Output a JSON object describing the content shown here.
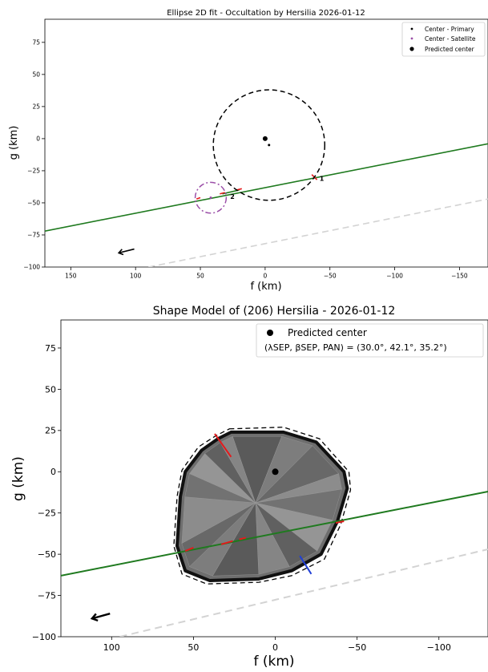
{
  "chart_data": [
    {
      "type": "scatter",
      "title": "Ellipse 2D fit - Occultation by Hersilia 2026-01-12",
      "xlabel": "f (km)",
      "ylabel": "g (km)",
      "xlim": [
        170,
        -172
      ],
      "ylim": [
        -100,
        93
      ],
      "x_ticks": [
        150,
        100,
        50,
        0,
        -50,
        -100,
        -150
      ],
      "x_tick_labels": [
        "150",
        "100",
        "50",
        "0",
        "−50",
        "−100",
        "−150"
      ],
      "y_ticks": [
        75,
        50,
        25,
        0,
        -25,
        -50,
        -75,
        -100
      ],
      "y_tick_labels": [
        "75",
        "50",
        "25",
        "0",
        "−25",
        "−50",
        "−75",
        "−100"
      ],
      "legend_position": "top-right",
      "legend": [
        {
          "label": "Center - Primary",
          "marker": "small-dot",
          "color": "#000000"
        },
        {
          "label": "Center - Satellite",
          "marker": "small-dot",
          "color": "#9b4fa8"
        },
        {
          "label": "Predicted center",
          "marker": "dot",
          "color": "#000000"
        }
      ],
      "primary_ellipse": {
        "center": [
          -3,
          -5
        ],
        "radius_x": 43,
        "radius_y": 43,
        "style": "dashed",
        "color": "#000000"
      },
      "satellite_ellipse": {
        "center": [
          42,
          -46
        ],
        "radius_x": 12,
        "radius_y": 12,
        "style": "dash-dot",
        "color": "#9b4fa8"
      },
      "primary_center": [
        -3,
        -5
      ],
      "satellite_center": [
        42,
        -46
      ],
      "predicted_center": [
        0,
        0
      ],
      "chords": [
        {
          "label": "1",
          "points": [
            [
              170,
              -72
            ],
            [
              -172,
              -4
            ]
          ],
          "color": "#1f7a1f"
        },
        {
          "label": "2",
          "points": [
            [
              33,
              -43
            ],
            [
              20,
              -40
            ]
          ],
          "color": "#1f7a1f"
        }
      ],
      "chord_endpoints": [
        {
          "points": [
            [
              -40,
              -32
            ],
            [
              -36,
              -28
            ]
          ],
          "color": "#e41a1c"
        },
        {
          "points": [
            [
              53,
              -47
            ],
            [
              50,
              -46
            ]
          ],
          "color": "#e41a1c"
        },
        {
          "points": [
            [
              35,
              -43
            ],
            [
              31,
              -42
            ]
          ],
          "color": "#e41a1c"
        },
        {
          "points": [
            [
              22,
              -40
            ],
            [
              18,
              -39
            ]
          ],
          "color": "#e41a1c"
        }
      ],
      "chord_labels": [
        {
          "text": "1",
          "at": [
            -42,
            -33
          ]
        },
        {
          "text": "2",
          "at": [
            27,
            -47
          ]
        }
      ],
      "negative_chord": {
        "points": [
          [
            90,
            -100
          ],
          [
            -172,
            -47
          ]
        ],
        "color": "#d3d3d3",
        "style": "dashed"
      },
      "arrow": {
        "from": [
          101,
          -86
        ],
        "to": [
          113,
          -89
        ]
      }
    },
    {
      "type": "scatter",
      "title": "Shape Model of (206) Hersilia - 2026-01-12",
      "xlabel": "f (km)",
      "ylabel": "g (km)",
      "xlim": [
        131,
        -130
      ],
      "ylim": [
        -100,
        92
      ],
      "x_ticks": [
        100,
        50,
        0,
        -50,
        -100
      ],
      "x_tick_labels": [
        "100",
        "50",
        "0",
        "−50",
        "−100"
      ],
      "y_ticks": [
        75,
        50,
        25,
        0,
        -25,
        -50,
        -75,
        -100
      ],
      "y_tick_labels": [
        "75",
        "50",
        "25",
        "0",
        "−25",
        "−50",
        "−75",
        "−100"
      ],
      "legend_position": "top-right",
      "legend": [
        {
          "label": "Predicted center",
          "marker": "dot",
          "color": "#000000"
        }
      ],
      "legend_note": "(λSEP, βSEP, PAN) = (30.0°, 42.1°, 35.2°)",
      "predicted_center": [
        0,
        0
      ],
      "shape_outline": [
        [
          27,
          24
        ],
        [
          -5,
          24
        ],
        [
          -25,
          18
        ],
        [
          -42,
          0
        ],
        [
          -44,
          -10
        ],
        [
          -38,
          -30
        ],
        [
          -28,
          -50
        ],
        [
          -10,
          -60
        ],
        [
          10,
          -65
        ],
        [
          40,
          -66
        ],
        [
          55,
          -60
        ],
        [
          60,
          -45
        ],
        [
          58,
          -15
        ],
        [
          55,
          0
        ],
        [
          45,
          13
        ],
        [
          35,
          20
        ]
      ],
      "shape_envelope": [
        [
          28,
          26
        ],
        [
          -5,
          27
        ],
        [
          -27,
          20
        ],
        [
          -45,
          0
        ],
        [
          -46,
          -11
        ],
        [
          -40,
          -32
        ],
        [
          -30,
          -53
        ],
        [
          -10,
          -63
        ],
        [
          10,
          -67
        ],
        [
          42,
          -68
        ],
        [
          57,
          -62
        ],
        [
          62,
          -45
        ],
        [
          60,
          -15
        ],
        [
          57,
          1
        ],
        [
          47,
          15
        ],
        [
          36,
          22
        ]
      ],
      "chords": [
        {
          "points": [
            [
              131,
              -63
            ],
            [
              -130,
              -12
            ]
          ],
          "color": "#1f7a1f"
        },
        {
          "points": [
            [
              33,
              -44
            ],
            [
              19,
              -41
            ]
          ],
          "color": "#1f7a1f"
        }
      ],
      "chord_endpoints": [
        {
          "points": [
            [
              37,
              23
            ],
            [
              27,
              9
            ]
          ],
          "color": "#e41a1c"
        },
        {
          "points": [
            [
              55,
              -48
            ],
            [
              50,
              -46
            ]
          ],
          "color": "#e41a1c"
        },
        {
          "points": [
            [
              -37,
              -31
            ],
            [
              -42,
              -30
            ]
          ],
          "color": "#e41a1c"
        },
        {
          "points": [
            [
              33,
              -44
            ],
            [
              26,
              -42
            ]
          ],
          "color": "#e41a1c"
        },
        {
          "points": [
            [
              22,
              -41
            ],
            [
              18,
              -40
            ]
          ],
          "color": "#e41a1c"
        }
      ],
      "limb_marker": {
        "points": [
          [
            -15,
            -51
          ],
          [
            -22,
            -62
          ]
        ],
        "color": "#1f3fd6"
      },
      "negative_chord": {
        "points": [
          [
            95,
            -100
          ],
          [
            -130,
            -47
          ]
        ],
        "color": "#d3d3d3",
        "style": "dashed"
      },
      "arrow": {
        "from": [
          101,
          -86
        ],
        "to": [
          112,
          -89
        ]
      }
    }
  ]
}
